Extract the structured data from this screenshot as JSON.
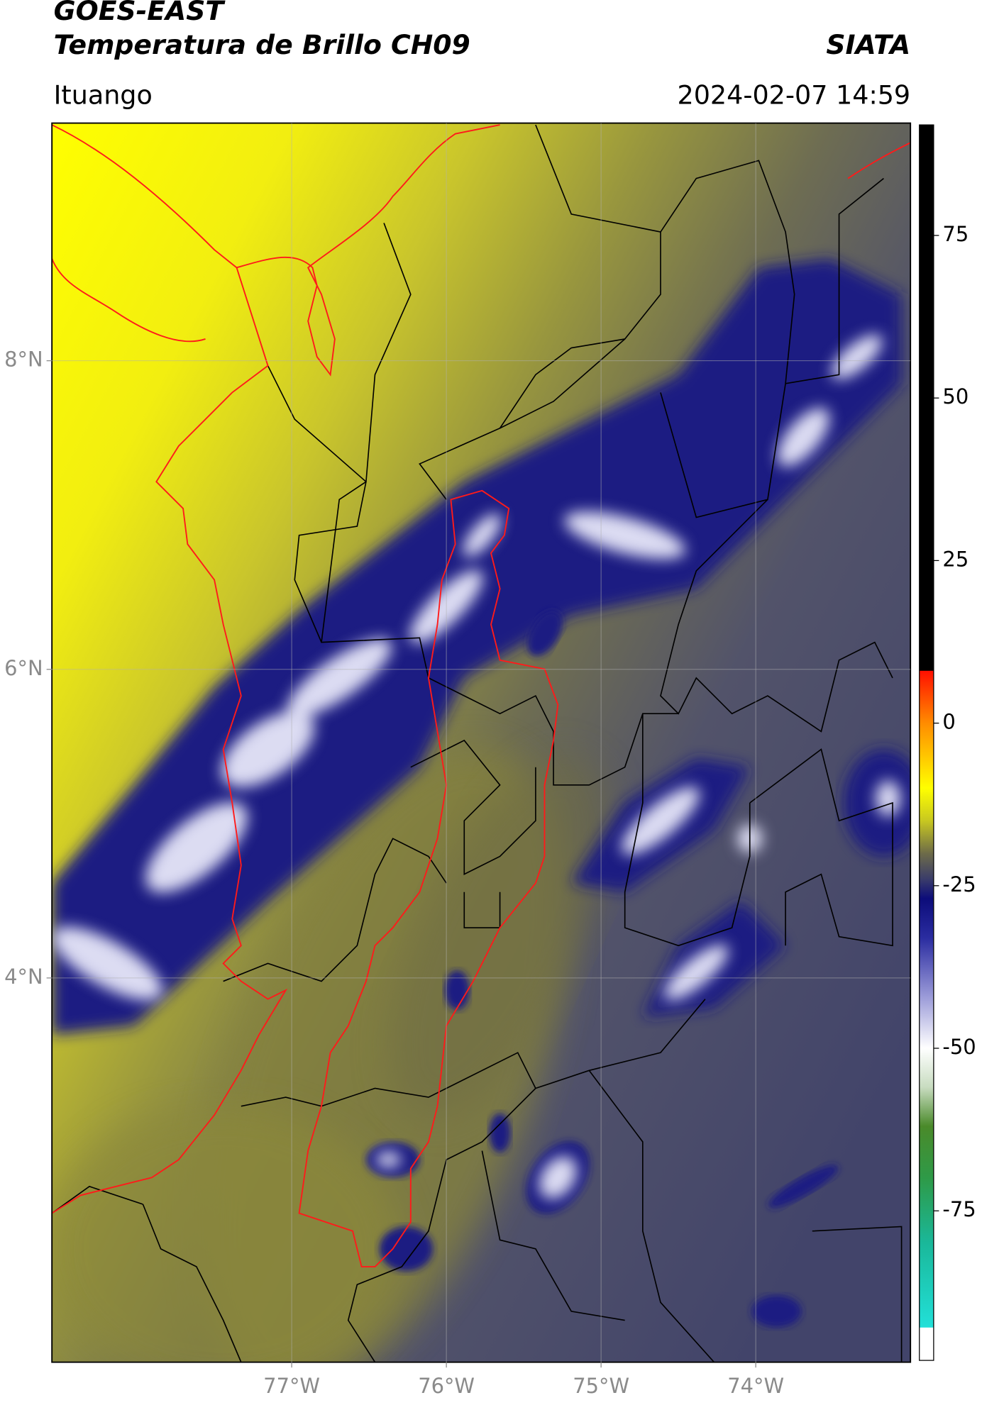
{
  "title": "GOES-EAST",
  "subtitle": "Temperatura de Brillo CH09",
  "source": "SIATA",
  "location": "Ituango",
  "datetime": "2024-02-07 14:59",
  "map": {
    "xlim": [
      -78.55,
      -73.0
    ],
    "ylim": [
      1.51,
      9.54
    ],
    "xticks": [
      {
        "value": -77,
        "label": "77°W"
      },
      {
        "value": -76,
        "label": "76°W"
      },
      {
        "value": -75,
        "label": "75°W"
      },
      {
        "value": -74,
        "label": "74°W"
      }
    ],
    "yticks": [
      {
        "value": 4,
        "label": "4°N"
      },
      {
        "value": 6,
        "label": "6°N"
      },
      {
        "value": 8,
        "label": "8°N"
      }
    ],
    "grid": true
  },
  "colorbar": {
    "lim": [
      -98,
      92
    ],
    "ticks": [
      -75,
      -50,
      -25,
      0,
      25,
      50,
      75
    ],
    "colormap": [
      {
        "value": -98,
        "color": "#ffffff"
      },
      {
        "value": -93,
        "color": "#ffffff"
      },
      {
        "value": -92.9,
        "color": "#22e0d8"
      },
      {
        "value": -80,
        "color": "#1ab89a"
      },
      {
        "value": -70,
        "color": "#2e9a48"
      },
      {
        "value": -62,
        "color": "#4a8a2a"
      },
      {
        "value": -56,
        "color": "#c8dcc0"
      },
      {
        "value": -50,
        "color": "#ffffff"
      },
      {
        "value": -42,
        "color": "#9a9ad8"
      },
      {
        "value": -33,
        "color": "#2a2ca0"
      },
      {
        "value": -27,
        "color": "#0c0c7a"
      },
      {
        "value": -24,
        "color": "#3a3c6a"
      },
      {
        "value": -20,
        "color": "#6e6c48"
      },
      {
        "value": -15,
        "color": "#c8c820"
      },
      {
        "value": -10,
        "color": "#ffff00"
      },
      {
        "value": 0,
        "color": "#ff8c00"
      },
      {
        "value": 8,
        "color": "#ff1000"
      },
      {
        "value": 8.1,
        "color": "#000000"
      },
      {
        "value": 92,
        "color": "#000000"
      }
    ]
  }
}
